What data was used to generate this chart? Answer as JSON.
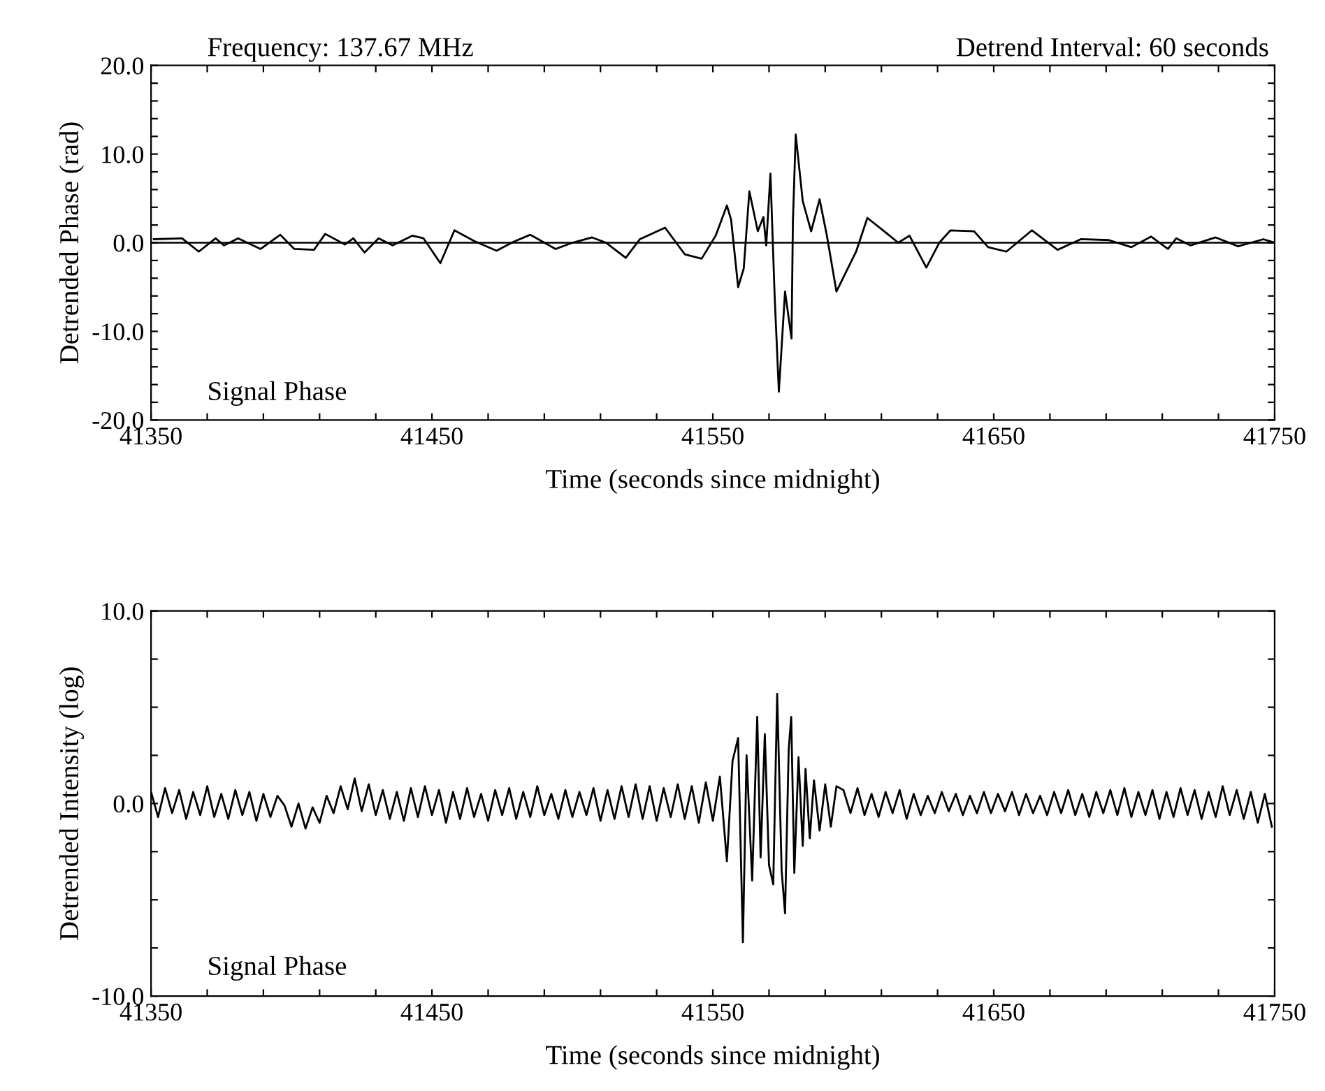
{
  "chart_data": [
    {
      "type": "line",
      "xlabel": "Time (seconds since midnight)",
      "ylabel": "Detrended Phase (rad)",
      "annotations": [
        "Frequency: 137.67 MHz",
        "Detrend Interval: 60 seconds",
        "Signal Phase"
      ],
      "xlim": [
        41350,
        41750
      ],
      "xticks": [
        41350,
        {
          "value": 41370,
          "label": null
        },
        {
          "value": 41390,
          "label": null
        },
        {
          "value": 41410,
          "label": null
        },
        {
          "value": 41430,
          "label": null
        },
        41450,
        {
          "value": 41470,
          "label": null
        },
        {
          "value": 41490,
          "label": null
        },
        {
          "value": 41510,
          "label": null
        },
        {
          "value": 41530,
          "label": null
        },
        41550,
        {
          "value": 41570,
          "label": null
        },
        {
          "value": 41590,
          "label": null
        },
        {
          "value": 41610,
          "label": null
        },
        {
          "value": 41630,
          "label": null
        },
        41650,
        {
          "value": 41670,
          "label": null
        },
        {
          "value": 41690,
          "label": null
        },
        {
          "value": 41710,
          "label": null
        },
        {
          "value": 41730,
          "label": null
        },
        41750
      ],
      "ylim": [
        -20,
        20
      ],
      "yticks": [
        {
          "value": -20,
          "label": "-20.0"
        },
        {
          "value": -18,
          "label": null
        },
        {
          "value": -16,
          "label": null
        },
        {
          "value": -14,
          "label": null
        },
        {
          "value": -12,
          "label": null
        },
        {
          "value": -10,
          "label": "-10.0"
        },
        {
          "value": -8,
          "label": null
        },
        {
          "value": -6,
          "label": null
        },
        {
          "value": -4,
          "label": null
        },
        {
          "value": -2,
          "label": null
        },
        {
          "value": 0,
          "label": "0.0"
        },
        {
          "value": 2,
          "label": null
        },
        {
          "value": 4,
          "label": null
        },
        {
          "value": 6,
          "label": null
        },
        {
          "value": 8,
          "label": null
        },
        {
          "value": 10,
          "label": "10.0"
        },
        {
          "value": 12,
          "label": null
        },
        {
          "value": 14,
          "label": null
        },
        {
          "value": 16,
          "label": null
        },
        {
          "value": 18,
          "label": null
        },
        {
          "value": 20,
          "label": "20.0"
        }
      ],
      "ref_lines": [
        {
          "axis": "y",
          "value": 0,
          "label": null,
          "color": "#000000"
        }
      ],
      "grid": false,
      "legend": false,
      "marker": "none",
      "line_style": "solid",
      "series": [
        {
          "color": "#000000",
          "x": [
            41351,
            41361,
            41367,
            41373,
            41376,
            41381,
            41389,
            41396,
            41401,
            41408,
            41412,
            41419,
            41422,
            41426,
            41431,
            41436,
            41443,
            41447,
            41453,
            41458,
            41465,
            41473,
            41479,
            41485,
            41494,
            41500,
            41507,
            41512,
            41519,
            41524,
            41533,
            41540,
            41546,
            41551,
            41555,
            41556.5,
            41559,
            41561,
            41563,
            41566,
            41568,
            41569,
            41570.5,
            41572,
            41573.5,
            41575.7,
            41578,
            41578.5,
            41579.5,
            41582,
            41585,
            41588,
            41590.6,
            41594,
            41601,
            41605,
            41611,
            41616,
            41620,
            41626,
            41630.6,
            41634.6,
            41643,
            41648,
            41654.5,
            41663.6,
            41672.7,
            41681,
            41691,
            41699,
            41706,
            41712,
            41715,
            41720,
            41729,
            41737,
            41746,
            41750
          ],
          "values": [
            0.4,
            0.5,
            -1.0,
            0.5,
            -0.3,
            0.5,
            -0.7,
            0.9,
            -0.7,
            -0.8,
            1.0,
            -0.2,
            0.5,
            -1.1,
            0.5,
            -0.3,
            0.8,
            0.5,
            -2.3,
            1.4,
            0.2,
            -0.9,
            0.1,
            0.9,
            -0.7,
            0,
            0.6,
            0,
            -1.7,
            0.4,
            1.7,
            -1.3,
            -1.8,
            0.8,
            4.2,
            2.6,
            -5.0,
            -2.9,
            5.8,
            1.3,
            2.9,
            -0.3,
            7.8,
            -6.0,
            -16.8,
            -5.5,
            -10.8,
            2.4,
            12.2,
            4.7,
            1.3,
            4.9,
            0.8,
            -5.5,
            -1.0,
            2.8,
            1.3,
            0,
            0.8,
            -2.8,
            0,
            1.4,
            1.3,
            -0.5,
            -1.0,
            1.4,
            -0.8,
            0.4,
            0.3,
            -0.5,
            0.7,
            -0.7,
            0.5,
            -0.3,
            0.6,
            -0.4,
            0.4,
            0
          ]
        }
      ]
    },
    {
      "type": "line",
      "xlabel": "Time (seconds since midnight)",
      "ylabel": "Detrended Intensity (log)",
      "annotations": [
        "Signal Phase"
      ],
      "xlim": [
        41350,
        41750
      ],
      "xticks": [
        41350,
        {
          "value": 41370,
          "label": null
        },
        {
          "value": 41390,
          "label": null
        },
        {
          "value": 41410,
          "label": null
        },
        {
          "value": 41430,
          "label": null
        },
        41450,
        {
          "value": 41470,
          "label": null
        },
        {
          "value": 41490,
          "label": null
        },
        {
          "value": 41510,
          "label": null
        },
        {
          "value": 41530,
          "label": null
        },
        41550,
        {
          "value": 41570,
          "label": null
        },
        {
          "value": 41590,
          "label": null
        },
        {
          "value": 41610,
          "label": null
        },
        {
          "value": 41630,
          "label": null
        },
        41650,
        {
          "value": 41670,
          "label": null
        },
        {
          "value": 41690,
          "label": null
        },
        {
          "value": 41710,
          "label": null
        },
        {
          "value": 41730,
          "label": null
        },
        41750
      ],
      "ylim": [
        -10,
        10
      ],
      "yticks": [
        {
          "value": -10,
          "label": "-10.0"
        },
        {
          "value": -7.5,
          "label": null
        },
        {
          "value": -5,
          "label": null
        },
        {
          "value": -2.5,
          "label": null
        },
        {
          "value": 0,
          "label": "0.0"
        },
        {
          "value": 2.5,
          "label": null
        },
        {
          "value": 5,
          "label": null
        },
        {
          "value": 7.5,
          "label": null
        },
        {
          "value": 10,
          "label": "10.0"
        }
      ],
      "grid": false,
      "legend": false,
      "marker": "none",
      "line_style": "solid",
      "series": [
        {
          "color": "#000000",
          "x": [
            41350,
            41352.5,
            41355,
            41357.5,
            41360,
            41362.5,
            41365,
            41367.5,
            41370,
            41372.5,
            41375,
            41377.5,
            41380,
            41382.5,
            41385,
            41387.5,
            41390,
            41392.5,
            41395,
            41397.5,
            41400,
            41402.5,
            41405,
            41407.5,
            41410,
            41412.5,
            41415,
            41417.5,
            41420,
            41422.5,
            41425,
            41427.5,
            41430,
            41432.5,
            41435,
            41437.5,
            41440,
            41442.5,
            41445,
            41447.5,
            41450,
            41452.5,
            41455,
            41457.5,
            41460,
            41462.5,
            41465,
            41467.5,
            41470,
            41472.5,
            41475,
            41477.5,
            41480,
            41482.5,
            41485,
            41487.5,
            41490,
            41492.5,
            41495,
            41497.5,
            41500,
            41502.5,
            41505,
            41507.5,
            41510,
            41512.5,
            41515,
            41517.5,
            41520,
            41522.5,
            41525,
            41527.5,
            41530,
            41532.5,
            41535,
            41537.5,
            41540,
            41542.5,
            41545,
            41547.5,
            41550,
            41552.5,
            41555,
            41557,
            41559,
            41560.7,
            41562,
            41564,
            41565.8,
            41567,
            41568.5,
            41570,
            41571.5,
            41572.9,
            41574.5,
            41575.7,
            41577,
            41577.9,
            41579,
            41580.5,
            41582,
            41583,
            41584.5,
            41586,
            41588,
            41590,
            41592,
            41594,
            41596.5,
            41599,
            41601.5,
            41604,
            41606.5,
            41609,
            41611.5,
            41614,
            41616.5,
            41619,
            41621.5,
            41624,
            41626.5,
            41629,
            41631.5,
            41634,
            41636.5,
            41639,
            41641.5,
            41644,
            41646.5,
            41649,
            41651.5,
            41654,
            41656.5,
            41659,
            41661.5,
            41664,
            41666.5,
            41669,
            41671.5,
            41674,
            41676.5,
            41679,
            41681.5,
            41684,
            41686.5,
            41689,
            41691.5,
            41694,
            41696.5,
            41699,
            41701.5,
            41704,
            41706.5,
            41709,
            41711.5,
            41714,
            41716.5,
            41719,
            41721.5,
            41724,
            41726.5,
            41729,
            41731.5,
            41734,
            41736.5,
            41739,
            41741.5,
            41744,
            41746.5,
            41749
          ],
          "values": [
            0.6,
            -0.7,
            0.8,
            -0.5,
            0.7,
            -0.8,
            0.6,
            -0.6,
            0.9,
            -0.7,
            0.5,
            -0.8,
            0.7,
            -0.6,
            0.6,
            -0.9,
            0.5,
            -0.7,
            0.4,
            -0.1,
            -1.2,
            0.0,
            -1.3,
            -0.2,
            -1.0,
            0.4,
            -0.5,
            0.9,
            -0.3,
            1.3,
            -0.4,
            1.0,
            -0.6,
            0.7,
            -0.8,
            0.6,
            -0.9,
            0.8,
            -0.7,
            0.9,
            -0.6,
            0.7,
            -1.0,
            0.6,
            -0.8,
            0.8,
            -0.7,
            0.5,
            -0.9,
            0.7,
            -0.6,
            0.8,
            -0.8,
            0.6,
            -0.7,
            0.9,
            -0.6,
            0.5,
            -0.8,
            0.7,
            -0.7,
            0.6,
            -0.6,
            0.8,
            -0.9,
            0.7,
            -0.8,
            0.9,
            -0.7,
            1.0,
            -0.8,
            0.9,
            -0.9,
            0.8,
            -0.7,
            1.0,
            -0.8,
            0.9,
            -1.0,
            1.1,
            -0.9,
            1.4,
            -3.0,
            2.2,
            3.4,
            -7.2,
            2.5,
            -4.0,
            4.5,
            -2.8,
            3.6,
            -3.2,
            -4.2,
            5.7,
            -3.5,
            -5.7,
            2.8,
            4.5,
            -3.6,
            2.4,
            -2.2,
            1.8,
            -1.8,
            1.2,
            -1.4,
            1.0,
            -1.2,
            0.9,
            0.7,
            -0.5,
            0.8,
            -0.6,
            0.5,
            -0.7,
            0.6,
            -0.5,
            0.7,
            -0.8,
            0.5,
            -0.6,
            0.4,
            -0.5,
            0.6,
            -0.4,
            0.5,
            -0.6,
            0.4,
            -0.5,
            0.6,
            -0.5,
            0.5,
            -0.4,
            0.6,
            -0.6,
            0.5,
            -0.5,
            0.4,
            -0.6,
            0.6,
            -0.5,
            0.7,
            -0.6,
            0.5,
            -0.7,
            0.6,
            -0.5,
            0.7,
            -0.6,
            0.8,
            -0.7,
            0.6,
            -0.6,
            0.7,
            -0.8,
            0.6,
            -0.7,
            0.8,
            -0.6,
            0.7,
            -0.8,
            0.6,
            -0.7,
            0.9,
            -0.6,
            0.7,
            -0.8,
            0.6,
            -1.0,
            0.5,
            -1.2
          ]
        }
      ]
    }
  ]
}
